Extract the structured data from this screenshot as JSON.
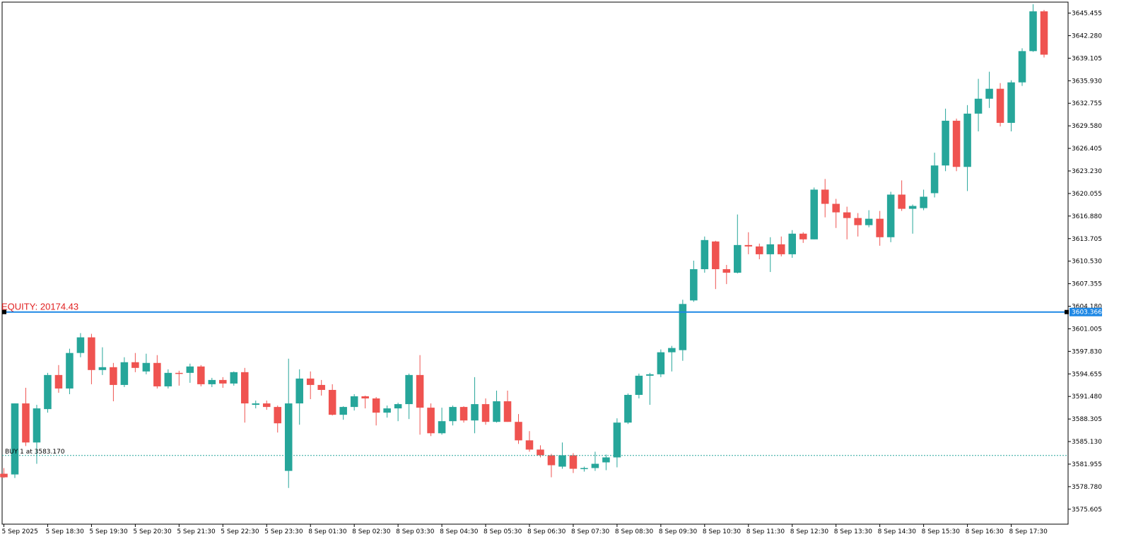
{
  "colors": {
    "bull": "#26a69a",
    "bear": "#ef5350",
    "hline": "#1e88e5",
    "equity_text": "#e02020",
    "order_line": "#26a69a",
    "frame": "#000000"
  },
  "equity_label": "EQUITY: 20174.43",
  "order_label": "BUY 1 at 3583.170",
  "chart_data": {
    "type": "candlestick",
    "y_axis": {
      "range": [
        3573.5,
        3647.0
      ],
      "tick_values": [
        3575.605,
        3578.78,
        3581.955,
        3585.13,
        3588.305,
        3591.48,
        3594.655,
        3597.83,
        3601.005,
        3604.18,
        3607.355,
        3610.53,
        3613.705,
        3616.88,
        3620.055,
        3623.23,
        3626.405,
        3629.58,
        3632.755,
        3635.93,
        3639.105,
        3642.28,
        3645.455
      ],
      "tick_labels": [
        "3575.605",
        "3578.780",
        "3581.955",
        "3585.130",
        "3588.305",
        "3591.480",
        "3594.655",
        "3597.830",
        "3601.005",
        "3604.180",
        "3607.355",
        "3610.530",
        "3613.705",
        "3616.880",
        "3620.055",
        "3623.230",
        "3626.405",
        "3629.580",
        "3632.755",
        "3635.930",
        "3639.105",
        "3642.280",
        "3645.455"
      ]
    },
    "x_axis": {
      "labels": [
        "5 Sep 2025",
        "5 Sep 18:30",
        "5 Sep 19:30",
        "5 Sep 20:30",
        "5 Sep 21:30",
        "5 Sep 22:30",
        "5 Sep 23:30",
        "8 Sep 01:30",
        "8 Sep 02:30",
        "8 Sep 03:30",
        "8 Sep 04:30",
        "8 Sep 05:30",
        "8 Sep 06:30",
        "8 Sep 07:30",
        "8 Sep 08:30",
        "8 Sep 09:30",
        "8 Sep 10:30",
        "8 Sep 11:30",
        "8 Sep 12:30",
        "8 Sep 13:30",
        "8 Sep 14:30",
        "8 Sep 15:30",
        "8 Sep 16:30",
        "8 Sep 17:30"
      ],
      "label_candle_index": [
        0,
        4,
        8,
        12,
        16,
        20,
        24,
        28,
        32,
        36,
        40,
        44,
        48,
        52,
        56,
        60,
        64,
        68,
        72,
        76,
        80,
        84,
        88,
        92
      ]
    },
    "current_price": 3603.366,
    "current_price_label": "3603.366",
    "order_price": 3583.17,
    "ohlc": [
      [
        3580.6,
        3581.4,
        3580.0,
        3580.1
      ],
      [
        3580.5,
        3590.5,
        3580.0,
        3590.5
      ],
      [
        3590.5,
        3592.7,
        3584.5,
        3585.0
      ],
      [
        3585.0,
        3590.3,
        3582.0,
        3589.8
      ],
      [
        3589.7,
        3594.8,
        3589.2,
        3594.5
      ],
      [
        3594.5,
        3595.9,
        3592.0,
        3592.6
      ],
      [
        3592.6,
        3598.2,
        3591.8,
        3597.6
      ],
      [
        3597.6,
        3600.4,
        3597.0,
        3599.8
      ],
      [
        3599.8,
        3600.3,
        3593.2,
        3595.2
      ],
      [
        3595.2,
        3598.4,
        3594.5,
        3595.6
      ],
      [
        3595.6,
        3596.2,
        3590.8,
        3593.1
      ],
      [
        3593.1,
        3597.0,
        3592.8,
        3596.3
      ],
      [
        3596.3,
        3597.6,
        3594.9,
        3595.5
      ],
      [
        3595.0,
        3597.5,
        3594.6,
        3596.2
      ],
      [
        3596.2,
        3597.3,
        3592.6,
        3592.9
      ],
      [
        3592.9,
        3595.3,
        3592.6,
        3594.8
      ],
      [
        3594.8,
        3595.1,
        3593.0,
        3594.7
      ],
      [
        3594.8,
        3596.1,
        3593.4,
        3595.7
      ],
      [
        3595.7,
        3595.9,
        3592.9,
        3593.2
      ],
      [
        3593.2,
        3594.1,
        3592.8,
        3593.8
      ],
      [
        3593.8,
        3594.2,
        3592.7,
        3593.3
      ],
      [
        3593.3,
        3595.0,
        3593.0,
        3594.9
      ],
      [
        3594.9,
        3595.5,
        3587.8,
        3590.5
      ],
      [
        3590.3,
        3590.9,
        3589.8,
        3590.5
      ],
      [
        3590.5,
        3590.9,
        3589.6,
        3590.0
      ],
      [
        3590.0,
        3590.2,
        3586.4,
        3587.7
      ],
      [
        3581.0,
        3596.8,
        3578.6,
        3590.5
      ],
      [
        3590.5,
        3595.3,
        3587.5,
        3594.0
      ],
      [
        3594.0,
        3595.0,
        3591.1,
        3593.1
      ],
      [
        3593.1,
        3593.8,
        3591.6,
        3592.4
      ],
      [
        3592.4,
        3593.2,
        3588.8,
        3588.9
      ],
      [
        3588.9,
        3590.1,
        3588.2,
        3590.0
      ],
      [
        3590.0,
        3591.8,
        3589.5,
        3591.5
      ],
      [
        3591.5,
        3591.6,
        3589.8,
        3591.2
      ],
      [
        3591.2,
        3591.4,
        3587.4,
        3589.2
      ],
      [
        3589.2,
        3590.2,
        3588.5,
        3589.8
      ],
      [
        3589.8,
        3590.6,
        3588.0,
        3590.4
      ],
      [
        3590.4,
        3594.7,
        3588.3,
        3594.5
      ],
      [
        3594.5,
        3597.3,
        3586.1,
        3589.9
      ],
      [
        3589.9,
        3590.5,
        3585.9,
        3586.3
      ],
      [
        3586.3,
        3589.9,
        3586.1,
        3588.0
      ],
      [
        3588.0,
        3590.2,
        3587.4,
        3590.0
      ],
      [
        3590.0,
        3590.1,
        3587.8,
        3588.1
      ],
      [
        3588.1,
        3594.2,
        3586.3,
        3590.4
      ],
      [
        3590.4,
        3591.2,
        3587.5,
        3587.9
      ],
      [
        3587.9,
        3592.3,
        3587.8,
        3590.8
      ],
      [
        3590.8,
        3592.3,
        3587.9,
        3587.9
      ],
      [
        3587.9,
        3589.0,
        3584.8,
        3585.3
      ],
      [
        3585.3,
        3586.6,
        3583.7,
        3584.0
      ],
      [
        3584.0,
        3584.6,
        3582.9,
        3583.2
      ],
      [
        3583.2,
        3583.4,
        3580.1,
        3581.8
      ],
      [
        3581.6,
        3585.0,
        3581.3,
        3583.2
      ],
      [
        3583.2,
        3583.5,
        3580.7,
        3581.3
      ],
      [
        3581.3,
        3581.6,
        3580.9,
        3581.4
      ],
      [
        3581.4,
        3583.7,
        3581.0,
        3582.0
      ],
      [
        3582.2,
        3583.3,
        3581.1,
        3582.9
      ],
      [
        3582.9,
        3588.4,
        3581.5,
        3587.8
      ],
      [
        3587.8,
        3591.9,
        3587.6,
        3591.7
      ],
      [
        3591.7,
        3594.7,
        3591.2,
        3594.4
      ],
      [
        3594.4,
        3594.8,
        3590.3,
        3594.6
      ],
      [
        3594.6,
        3598.1,
        3594.2,
        3597.7
      ],
      [
        3597.7,
        3598.6,
        3595.0,
        3598.3
      ],
      [
        3598.0,
        3605.1,
        3596.5,
        3604.5
      ],
      [
        3605.0,
        3610.6,
        3604.8,
        3609.4
      ],
      [
        3609.4,
        3614.0,
        3608.9,
        3613.5
      ],
      [
        3613.3,
        3613.4,
        3606.6,
        3609.4
      ],
      [
        3609.4,
        3610.0,
        3607.3,
        3608.9
      ],
      [
        3608.9,
        3617.1,
        3608.8,
        3612.8
      ],
      [
        3612.8,
        3614.6,
        3611.5,
        3612.6
      ],
      [
        3612.6,
        3613.0,
        3610.8,
        3611.5
      ],
      [
        3611.5,
        3613.9,
        3609.0,
        3612.9
      ],
      [
        3612.9,
        3614.0,
        3611.2,
        3611.5
      ],
      [
        3611.5,
        3614.9,
        3611.0,
        3614.4
      ],
      [
        3614.4,
        3614.6,
        3613.1,
        3613.6
      ],
      [
        3613.6,
        3620.9,
        3613.6,
        3620.6
      ],
      [
        3620.6,
        3622.1,
        3616.7,
        3618.6
      ],
      [
        3618.6,
        3619.3,
        3615.2,
        3617.4
      ],
      [
        3617.4,
        3618.2,
        3613.6,
        3616.6
      ],
      [
        3616.6,
        3617.3,
        3614.0,
        3615.6
      ],
      [
        3615.6,
        3617.7,
        3615.3,
        3616.5
      ],
      [
        3616.5,
        3617.6,
        3612.7,
        3613.9
      ],
      [
        3613.9,
        3620.3,
        3613.2,
        3619.9
      ],
      [
        3619.9,
        3621.9,
        3617.6,
        3617.9
      ],
      [
        3617.9,
        3618.5,
        3614.4,
        3618.3
      ],
      [
        3618.0,
        3620.6,
        3617.7,
        3619.6
      ],
      [
        3620.1,
        3625.8,
        3619.5,
        3624.0
      ],
      [
        3624.0,
        3632.0,
        3623.2,
        3630.3
      ],
      [
        3630.3,
        3630.6,
        3623.2,
        3623.8
      ],
      [
        3623.8,
        3632.5,
        3620.4,
        3631.3
      ],
      [
        3631.3,
        3636.2,
        3628.8,
        3633.4
      ],
      [
        3633.4,
        3637.2,
        3632.1,
        3634.8
      ],
      [
        3634.8,
        3635.6,
        3629.5,
        3630.0
      ],
      [
        3630.0,
        3636.0,
        3628.8,
        3635.7
      ],
      [
        3635.7,
        3640.5,
        3635.2,
        3640.1
      ],
      [
        3640.1,
        3646.7,
        3640.0,
        3645.7
      ],
      [
        3645.7,
        3645.9,
        3639.2,
        3639.6
      ]
    ]
  }
}
